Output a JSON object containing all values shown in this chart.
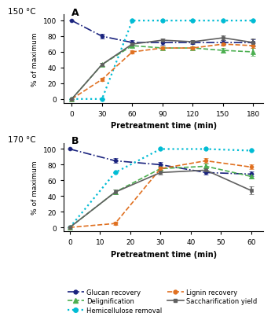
{
  "panel_A": {
    "title": "150 °C",
    "label": "A",
    "x": [
      0,
      30,
      60,
      90,
      120,
      150,
      180
    ],
    "glucan": [
      100,
      80,
      72,
      72,
      72,
      72,
      72
    ],
    "hemicellulose": [
      0,
      0,
      100,
      100,
      100,
      100,
      100
    ],
    "delignification": [
      0,
      44,
      68,
      65,
      65,
      62,
      60
    ],
    "lignin": [
      0,
      25,
      60,
      65,
      65,
      70,
      68
    ],
    "saccharification": [
      0,
      44,
      70,
      75,
      73,
      78,
      72
    ],
    "glucan_err": [
      0,
      3,
      3,
      3,
      2,
      3,
      4
    ],
    "hemicellulose_err": [
      0,
      0,
      0,
      0,
      0,
      0,
      0
    ],
    "delignification_err": [
      0,
      2,
      2,
      2,
      2,
      3,
      5
    ],
    "lignin_err": [
      0,
      2,
      2,
      2,
      2,
      2,
      3
    ],
    "saccharification_err": [
      0,
      2,
      2,
      2,
      2,
      3,
      5
    ],
    "xticks": [
      0,
      30,
      60,
      90,
      120,
      150,
      180
    ],
    "xlim": [
      -8,
      190
    ]
  },
  "panel_B": {
    "title": "170 °C",
    "label": "B",
    "x": [
      0,
      15,
      30,
      45,
      60
    ],
    "glucan": [
      100,
      85,
      80,
      70,
      68
    ],
    "hemicellulose": [
      0,
      70,
      100,
      100,
      98
    ],
    "delignification": [
      0,
      45,
      75,
      78,
      65
    ],
    "lignin": [
      0,
      5,
      75,
      85,
      77
    ],
    "saccharification": [
      0,
      45,
      70,
      73,
      47
    ],
    "glucan_err": [
      0,
      3,
      3,
      3,
      3
    ],
    "hemicellulose_err": [
      0,
      0,
      0,
      0,
      0
    ],
    "delignification_err": [
      0,
      3,
      3,
      3,
      3
    ],
    "lignin_err": [
      0,
      2,
      2,
      3,
      3
    ],
    "saccharification_err": [
      0,
      3,
      3,
      3,
      5
    ],
    "xticks": [
      0,
      10,
      20,
      30,
      40,
      50,
      60
    ],
    "xlim": [
      -2,
      64
    ]
  },
  "colors": {
    "glucan": "#1a237e",
    "hemicellulose": "#00bcd4",
    "delignification": "#4caf50",
    "lignin": "#e07020",
    "saccharification": "#606060"
  },
  "ylabel": "% of maximum",
  "xlabel": "Pretreatment time (min)",
  "ylim": [
    -5,
    108
  ],
  "yticks": [
    0,
    20,
    40,
    60,
    80,
    100
  ]
}
